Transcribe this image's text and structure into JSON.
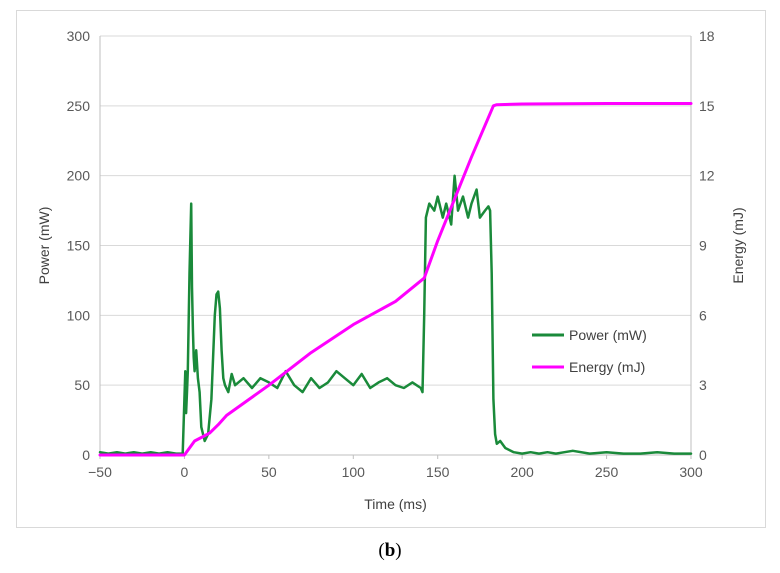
{
  "caption": {
    "open": "(",
    "letter": "b",
    "close": ")"
  },
  "colors": {
    "power": "#1a8a3a",
    "energy": "#ff00ff",
    "grid": "#d9d9d9",
    "axis": "#bfbfbf"
  },
  "chart_data": {
    "type": "line",
    "xlabel": "Time (ms)",
    "ylabel": "Power (mW)",
    "y2label": "Energy (mJ)",
    "xlim": [
      -50,
      300
    ],
    "ylim": [
      0,
      300
    ],
    "y2lim": [
      0,
      18
    ],
    "xticks": [
      "−50",
      "0",
      "50",
      "100",
      "150",
      "200",
      "250",
      "300"
    ],
    "yticks": [
      "0",
      "50",
      "100",
      "150",
      "200",
      "250",
      "300"
    ],
    "y2ticks": [
      "0",
      "3",
      "6",
      "9",
      "12",
      "15",
      "18"
    ],
    "grid": true,
    "legend_position": "right-center",
    "series": [
      {
        "name": "Power (mW)",
        "axis": "left",
        "x": [
          -50,
          -45,
          -40,
          -35,
          -30,
          -25,
          -20,
          -15,
          -10,
          -5,
          -1,
          0,
          0.5,
          1,
          1.5,
          2,
          3,
          4,
          4.5,
          5,
          5.5,
          6,
          7,
          8,
          9,
          10,
          12,
          14,
          16,
          17,
          18,
          19,
          20,
          21,
          22,
          23,
          24,
          26,
          28,
          30,
          35,
          40,
          45,
          50,
          55,
          60,
          65,
          70,
          75,
          80,
          85,
          90,
          95,
          100,
          105,
          110,
          115,
          120,
          125,
          130,
          135,
          140,
          141,
          142,
          143,
          145,
          148,
          150,
          153,
          155,
          158,
          160,
          162,
          165,
          168,
          170,
          173,
          175,
          178,
          180,
          181,
          182,
          183,
          184,
          185,
          187,
          190,
          195,
          200,
          205,
          210,
          215,
          220,
          225,
          230,
          240,
          250,
          260,
          270,
          280,
          290,
          300
        ],
        "values": [
          2,
          1,
          2,
          1,
          2,
          1,
          2,
          1,
          2,
          1,
          1,
          40,
          60,
          30,
          45,
          60,
          130,
          180,
          120,
          90,
          70,
          60,
          75,
          55,
          45,
          20,
          10,
          15,
          40,
          70,
          100,
          115,
          117,
          105,
          75,
          55,
          50,
          45,
          58,
          50,
          55,
          48,
          55,
          52,
          48,
          60,
          50,
          45,
          55,
          48,
          52,
          60,
          55,
          50,
          58,
          48,
          52,
          55,
          50,
          48,
          52,
          48,
          45,
          100,
          170,
          180,
          175,
          185,
          170,
          180,
          165,
          200,
          175,
          185,
          170,
          180,
          190,
          170,
          175,
          178,
          175,
          130,
          40,
          15,
          8,
          10,
          5,
          2,
          1,
          2,
          1,
          2,
          1,
          2,
          3,
          1,
          2,
          1,
          1,
          2,
          1,
          1
        ]
      },
      {
        "name": "Energy (mJ)",
        "axis": "right",
        "x": [
          -50,
          0,
          3,
          6,
          10,
          15,
          20,
          25,
          50,
          75,
          100,
          125,
          142,
          150,
          160,
          170,
          183,
          185,
          200,
          250,
          300
        ],
        "values": [
          0,
          0,
          0.3,
          0.6,
          0.75,
          0.95,
          1.3,
          1.7,
          3.0,
          4.4,
          5.6,
          6.6,
          7.6,
          9.2,
          11.0,
          12.8,
          15.0,
          15.05,
          15.08,
          15.1,
          15.1
        ]
      }
    ]
  }
}
